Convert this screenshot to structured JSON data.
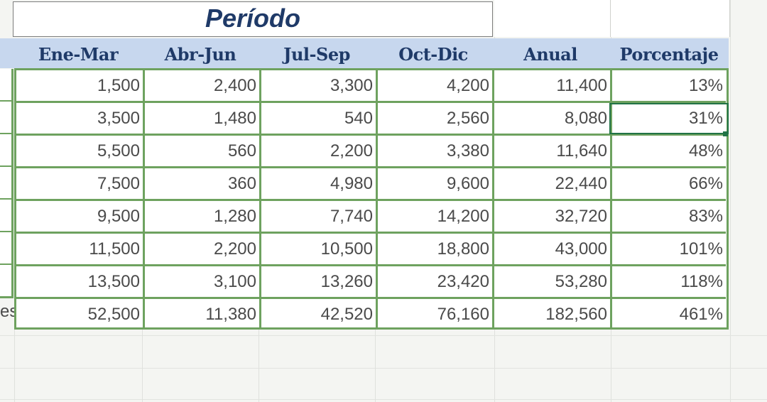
{
  "title": "Período",
  "headers": [
    "Ene-Mar",
    "Abr-Jun",
    "Jul-Sep",
    "Oct-Dic",
    "Anual",
    "Porcentaje"
  ],
  "rows": [
    [
      "1,500",
      "2,400",
      "3,300",
      "4,200",
      "11,400",
      "13%"
    ],
    [
      "3,500",
      "1,480",
      "540",
      "2,560",
      "8,080",
      "31%"
    ],
    [
      "5,500",
      "560",
      "2,200",
      "3,380",
      "11,640",
      "48%"
    ],
    [
      "7,500",
      "360",
      "4,980",
      "9,600",
      "22,440",
      "66%"
    ],
    [
      "9,500",
      "1,280",
      "7,740",
      "14,200",
      "32,720",
      "83%"
    ],
    [
      "11,500",
      "2,200",
      "10,500",
      "18,800",
      "43,000",
      "101%"
    ],
    [
      "13,500",
      "3,100",
      "13,260",
      "23,420",
      "53,280",
      "118%"
    ],
    [
      "52,500",
      "11,380",
      "42,520",
      "76,160",
      "182,560",
      "461%"
    ]
  ],
  "partial_label": "es",
  "colors": {
    "header_fill": "#c7d7ee",
    "header_text": "#1f3a68",
    "border_green": "#6ea25f",
    "selection": "#217346"
  }
}
